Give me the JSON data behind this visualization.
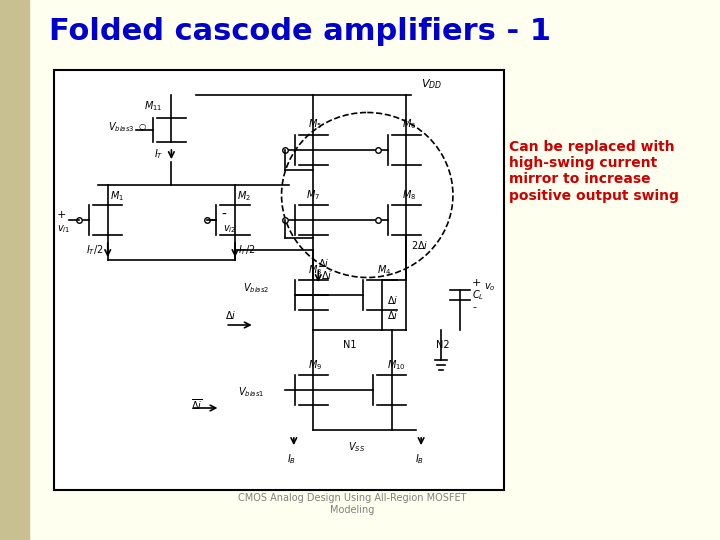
{
  "title": "Folded cascode amplifiers - 1",
  "title_color": "#0000CC",
  "title_fontsize": 22,
  "title_bold": true,
  "bg_color": "#FFFFF0",
  "left_bar_color": "#C8C090",
  "circuit_bg": "#FFFFFF",
  "annotation_color": "#CC0000",
  "annotation_text": "Can be replaced with\nhigh-swing current\nmirror to increase\npositive output swing",
  "annotation_fontsize": 10,
  "footer_text": "CMOS Analog Design Using All-Region MOSFET\nModeling",
  "footer_color": "#808080",
  "footer_fontsize": 7
}
